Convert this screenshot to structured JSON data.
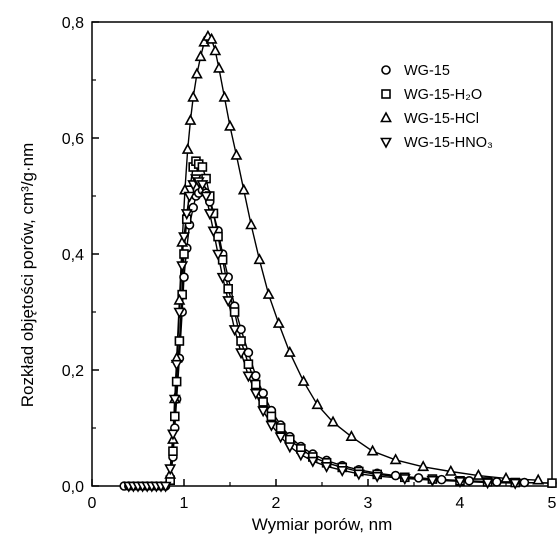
{
  "chart_data": {
    "type": "line",
    "title": "",
    "xlabel": "Wymiar porów, nm",
    "ylabel": "Rozkład objętości porów, cm³/g·nm",
    "xlim": [
      0,
      5
    ],
    "ylim": [
      0,
      0.8
    ],
    "x_ticks": [
      "0",
      "1",
      "2",
      "3",
      "4",
      "5"
    ],
    "y_ticks": [
      "0,0",
      "0,2",
      "0,4",
      "0,6",
      "0,8"
    ],
    "grid": false,
    "legend_position": "top-right",
    "series": [
      {
        "name": "WG-15",
        "marker": "circle",
        "x": [
          0.35,
          0.4,
          0.45,
          0.5,
          0.55,
          0.6,
          0.65,
          0.7,
          0.75,
          0.8,
          0.85,
          0.88,
          0.9,
          0.92,
          0.95,
          0.98,
          1.0,
          1.03,
          1.06,
          1.1,
          1.13,
          1.16,
          1.2,
          1.24,
          1.28,
          1.32,
          1.37,
          1.42,
          1.48,
          1.55,
          1.62,
          1.7,
          1.78,
          1.86,
          1.95,
          2.05,
          2.15,
          2.27,
          2.4,
          2.55,
          2.72,
          2.9,
          3.1,
          3.3,
          3.55,
          3.8,
          4.1,
          4.4,
          4.7,
          5.0
        ],
        "y": [
          0,
          0,
          0,
          0,
          0,
          0,
          0,
          0,
          0,
          0,
          0.01,
          0.05,
          0.1,
          0.15,
          0.22,
          0.3,
          0.36,
          0.41,
          0.45,
          0.48,
          0.5,
          0.505,
          0.51,
          0.505,
          0.49,
          0.47,
          0.44,
          0.4,
          0.36,
          0.31,
          0.27,
          0.23,
          0.19,
          0.16,
          0.13,
          0.105,
          0.085,
          0.068,
          0.055,
          0.044,
          0.035,
          0.028,
          0.022,
          0.018,
          0.014,
          0.011,
          0.009,
          0.007,
          0.006,
          0.005
        ]
      },
      {
        "name": "WG-15-H₂O",
        "marker": "square",
        "x": [
          0.85,
          0.88,
          0.9,
          0.92,
          0.95,
          0.98,
          1.0,
          1.03,
          1.06,
          1.1,
          1.13,
          1.16,
          1.2,
          1.24,
          1.28,
          1.32,
          1.37,
          1.42,
          1.48,
          1.55,
          1.62,
          1.7,
          1.78,
          1.86,
          1.95,
          2.05,
          2.15,
          2.27,
          2.4,
          2.55,
          2.72,
          2.9,
          3.1,
          3.4,
          3.7,
          4.0,
          4.3,
          4.6,
          5.0
        ],
        "y": [
          0.01,
          0.06,
          0.12,
          0.18,
          0.25,
          0.33,
          0.4,
          0.46,
          0.51,
          0.55,
          0.56,
          0.555,
          0.55,
          0.53,
          0.5,
          0.47,
          0.43,
          0.39,
          0.34,
          0.3,
          0.25,
          0.21,
          0.175,
          0.145,
          0.12,
          0.1,
          0.08,
          0.064,
          0.05,
          0.04,
          0.032,
          0.025,
          0.02,
          0.015,
          0.012,
          0.009,
          0.007,
          0.006,
          0.005
        ]
      },
      {
        "name": "WG-15-HCl",
        "marker": "triangle-up",
        "x": [
          0.85,
          0.88,
          0.9,
          0.92,
          0.95,
          0.98,
          1.01,
          1.04,
          1.07,
          1.1,
          1.14,
          1.18,
          1.22,
          1.26,
          1.3,
          1.34,
          1.38,
          1.44,
          1.5,
          1.57,
          1.65,
          1.73,
          1.82,
          1.92,
          2.03,
          2.15,
          2.3,
          2.45,
          2.62,
          2.82,
          3.05,
          3.3,
          3.6,
          3.9,
          4.2,
          4.5,
          4.85
        ],
        "y": [
          0.02,
          0.08,
          0.15,
          0.22,
          0.32,
          0.42,
          0.51,
          0.58,
          0.63,
          0.67,
          0.71,
          0.74,
          0.765,
          0.775,
          0.77,
          0.75,
          0.72,
          0.67,
          0.62,
          0.57,
          0.51,
          0.45,
          0.39,
          0.33,
          0.28,
          0.23,
          0.18,
          0.14,
          0.11,
          0.085,
          0.06,
          0.045,
          0.033,
          0.025,
          0.018,
          0.013,
          0.01
        ]
      },
      {
        "name": "WG-15-HNO₃",
        "marker": "triangle-down",
        "x": [
          0.4,
          0.45,
          0.5,
          0.55,
          0.6,
          0.65,
          0.7,
          0.75,
          0.8,
          0.85,
          0.88,
          0.9,
          0.92,
          0.95,
          0.98,
          1.0,
          1.03,
          1.06,
          1.1,
          1.13,
          1.16,
          1.2,
          1.24,
          1.28,
          1.32,
          1.37,
          1.42,
          1.48,
          1.55,
          1.62,
          1.7,
          1.78,
          1.86,
          1.95,
          2.05,
          2.15,
          2.27,
          2.4,
          2.55,
          2.72,
          2.9,
          3.1,
          3.4,
          3.7,
          4.0,
          4.3,
          4.6
        ],
        "y": [
          0,
          0,
          0,
          0,
          0,
          0,
          0,
          0,
          0,
          0.03,
          0.09,
          0.15,
          0.21,
          0.3,
          0.38,
          0.43,
          0.47,
          0.5,
          0.52,
          0.53,
          0.525,
          0.52,
          0.5,
          0.47,
          0.44,
          0.4,
          0.36,
          0.32,
          0.27,
          0.23,
          0.19,
          0.16,
          0.13,
          0.105,
          0.085,
          0.068,
          0.054,
          0.043,
          0.034,
          0.027,
          0.021,
          0.017,
          0.013,
          0.01,
          0.008,
          0.006,
          0.005
        ]
      }
    ]
  }
}
